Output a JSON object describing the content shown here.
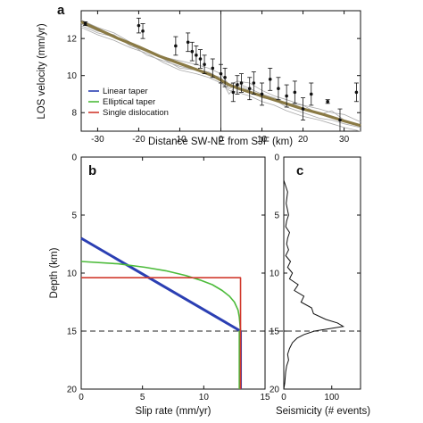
{
  "chart_data": [
    {
      "panel": "a",
      "type": "line",
      "xlabel": "Distance SW-NE from SJF (km)",
      "ylabel": "LOS velocity (mm/yr)",
      "xlim": [
        -34,
        34
      ],
      "ylim": [
        7,
        13.5
      ],
      "xticks": [
        -30,
        -20,
        -10,
        0,
        10,
        20,
        30
      ],
      "yticks": [
        8,
        10,
        12
      ],
      "legend_position": "bottom-left",
      "legend": [
        {
          "name": "Linear taper",
          "color": "#2b3fb3"
        },
        {
          "name": "Elliptical taper",
          "color": "#4cbb3a"
        },
        {
          "name": "Single dislocation",
          "color": "#d13a2e"
        }
      ],
      "model_curve": {
        "x": [
          -34,
          -30,
          -25,
          -20,
          -15,
          -10,
          -5,
          -2,
          0,
          2,
          5,
          10,
          15,
          20,
          25,
          30,
          34
        ],
        "y": [
          12.9,
          12.5,
          12.0,
          11.55,
          11.05,
          10.65,
          10.25,
          10.0,
          9.75,
          9.5,
          9.25,
          8.9,
          8.55,
          8.2,
          7.9,
          7.55,
          7.3
        ],
        "color": "#8a7a45"
      },
      "profiles": [
        {
          "x": [
            -34,
            -30,
            -26,
            -22,
            -18,
            -14,
            -10,
            -6,
            -3,
            0,
            2,
            4,
            7,
            10,
            13,
            16,
            20,
            24,
            27,
            30,
            34
          ],
          "y": [
            12.7,
            12.3,
            12.1,
            11.7,
            11.1,
            10.8,
            10.5,
            10.3,
            10.1,
            9.9,
            9.3,
            9.5,
            9.2,
            8.8,
            8.7,
            8.3,
            8.0,
            7.7,
            7.6,
            7.4,
            7.2
          ]
        },
        {
          "x": [
            -34,
            -30,
            -26,
            -22,
            -18,
            -14,
            -10,
            -6,
            -3,
            0,
            2,
            4,
            7,
            10,
            13,
            16,
            20,
            24,
            27,
            30,
            34
          ],
          "y": [
            13.0,
            12.6,
            12.3,
            11.8,
            11.4,
            11.0,
            10.8,
            10.6,
            10.4,
            10.1,
            9.5,
            9.7,
            9.6,
            9.2,
            8.9,
            8.7,
            8.4,
            8.2,
            8.0,
            7.9,
            7.5
          ]
        },
        {
          "x": [
            -34,
            -30,
            -26,
            -22,
            -18,
            -14,
            -10,
            -6,
            -3,
            0,
            2,
            4,
            7,
            10,
            13,
            16,
            20,
            24,
            27,
            30,
            34
          ],
          "y": [
            12.8,
            12.4,
            12.2,
            11.6,
            11.3,
            10.9,
            10.4,
            10.3,
            10.2,
            9.8,
            9.0,
            9.6,
            9.3,
            9.0,
            8.8,
            8.5,
            8.4,
            7.9,
            8.1,
            7.6,
            7.3
          ]
        },
        {
          "x": [
            -34,
            -30,
            -26,
            -22,
            -18,
            -14,
            -10,
            -6,
            -3,
            0,
            2,
            4,
            7,
            10,
            13,
            16,
            20,
            24,
            27,
            30,
            34
          ],
          "y": [
            12.6,
            12.2,
            11.9,
            11.5,
            11.2,
            10.7,
            10.3,
            10.1,
            9.9,
            9.6,
            9.2,
            9.1,
            8.9,
            8.6,
            8.4,
            8.1,
            7.8,
            7.6,
            7.4,
            7.2,
            7.0
          ]
        }
      ],
      "gps": {
        "x": [
          -33,
          -20,
          -19,
          -11,
          -8,
          -7,
          -6,
          -5,
          -4,
          -2,
          0,
          1,
          3,
          4,
          5,
          7,
          8,
          10,
          12,
          14,
          16,
          18,
          20,
          22,
          26,
          29,
          33
        ],
        "y": [
          12.8,
          12.7,
          12.4,
          11.6,
          11.8,
          11.3,
          11.1,
          10.9,
          10.6,
          10.4,
          10.1,
          9.9,
          9.1,
          9.5,
          9.6,
          9.3,
          9.6,
          9.0,
          9.8,
          9.3,
          8.9,
          9.1,
          8.2,
          9.0,
          8.6,
          7.6,
          9.1
        ],
        "err": [
          0.1,
          0.4,
          0.4,
          0.5,
          0.5,
          0.5,
          0.5,
          0.5,
          0.5,
          0.5,
          0.5,
          0.5,
          0.5,
          0.5,
          0.5,
          0.6,
          0.6,
          0.6,
          0.6,
          0.6,
          0.6,
          0.6,
          0.6,
          0.6,
          0.1,
          0.6,
          0.5
        ]
      }
    },
    {
      "panel": "b",
      "type": "line",
      "xlabel": "Slip rate (mm/yr)",
      "ylabel": "Depth (km)",
      "xlim": [
        0,
        15
      ],
      "ylim": [
        20,
        0
      ],
      "xticks": [
        0,
        5,
        10,
        15
      ],
      "yticks": [
        0,
        5,
        10,
        15,
        20
      ],
      "dashed_depth": 15,
      "series": [
        {
          "name": "Linear taper",
          "color": "#2b3fb3",
          "x": [
            0,
            13,
            13
          ],
          "y": [
            7,
            15,
            20
          ]
        },
        {
          "name": "Elliptical taper",
          "color": "#4cbb3a",
          "x": [
            0,
            3.0,
            5.2,
            6.9,
            8.5,
            9.7,
            10.7,
            11.5,
            12.1,
            12.5,
            12.8,
            12.9,
            12.95,
            13,
            12.9,
            12.9
          ],
          "y": [
            9,
            9.2,
            9.5,
            9.8,
            10.2,
            10.6,
            11.0,
            11.5,
            12.0,
            12.5,
            13.2,
            13.8,
            14.4,
            15,
            15,
            20
          ]
        },
        {
          "name": "Single dislocation",
          "color": "#d13a2e",
          "x": [
            0,
            13,
            13
          ],
          "y": [
            10.4,
            10.4,
            20
          ]
        }
      ]
    },
    {
      "panel": "c",
      "type": "line",
      "xlabel": "Seismicity (# events)",
      "xlim": [
        0,
        160
      ],
      "ylim": [
        20,
        0
      ],
      "xticks": [
        0,
        100
      ],
      "yticks": [
        0,
        5,
        10,
        15,
        20
      ],
      "series": [
        {
          "name": "",
          "depth": [
            0,
            1,
            2,
            3,
            4,
            5,
            5.5,
            6,
            6.5,
            7,
            7.5,
            8,
            8.5,
            9,
            9.5,
            10,
            10.5,
            11,
            11.5,
            12,
            12.5,
            13,
            13.5,
            14,
            14.3,
            14.6,
            15,
            15.3,
            15.6,
            16,
            16.5,
            17,
            17.5,
            18,
            18.5,
            19,
            19.5,
            20
          ],
          "events": [
            0,
            0,
            0,
            8,
            5,
            10,
            6,
            4,
            12,
            8,
            6,
            10,
            4,
            14,
            8,
            18,
            12,
            30,
            22,
            42,
            36,
            58,
            62,
            88,
            112,
            124,
            64,
            42,
            28,
            18,
            12,
            8,
            10,
            6,
            4,
            3,
            2,
            0
          ]
        }
      ]
    }
  ]
}
